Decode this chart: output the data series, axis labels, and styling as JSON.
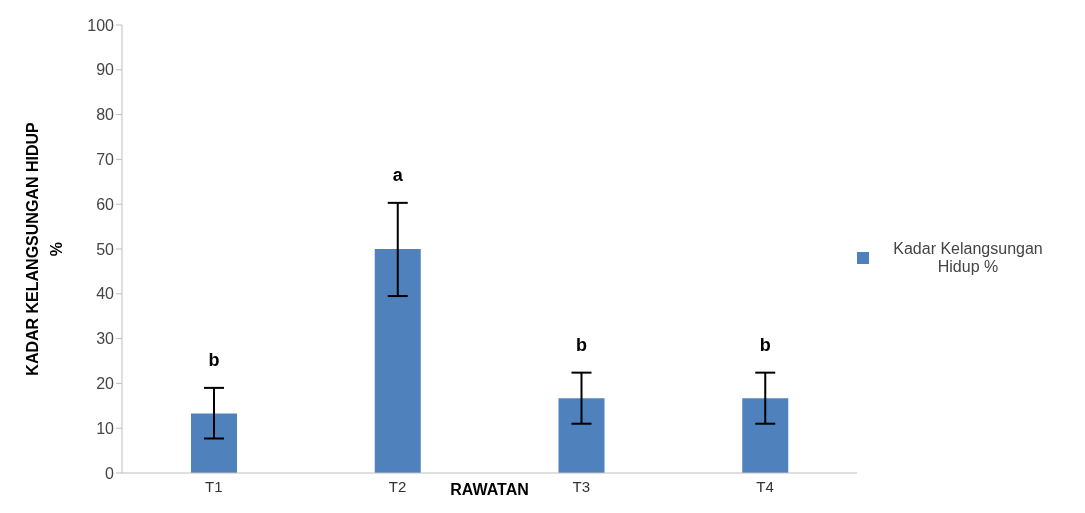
{
  "chart_data": {
    "type": "bar",
    "xlabel": "RAWATAN",
    "ylabel": "KADAR KELANGSUNGAN HIDUP %",
    "categories": [
      "T1",
      "T2",
      "T3",
      "T4"
    ],
    "series": [
      {
        "name": "Kadar Kelangsungan Hidup %",
        "color": "#4f81bd",
        "values": [
          13.3,
          50,
          16.7,
          16.7
        ],
        "errors": [
          [
            7.7,
            19
          ],
          [
            39.5,
            60.3
          ],
          [
            11,
            22.4
          ],
          [
            11,
            22.4
          ]
        ]
      }
    ],
    "ylim": [
      0,
      100
    ],
    "yticks": [
      0,
      10,
      20,
      30,
      40,
      50,
      60,
      70,
      80,
      90,
      100
    ],
    "grid": false,
    "legend": "right",
    "annotations": [
      "b",
      "a",
      "b",
      "b"
    ]
  }
}
